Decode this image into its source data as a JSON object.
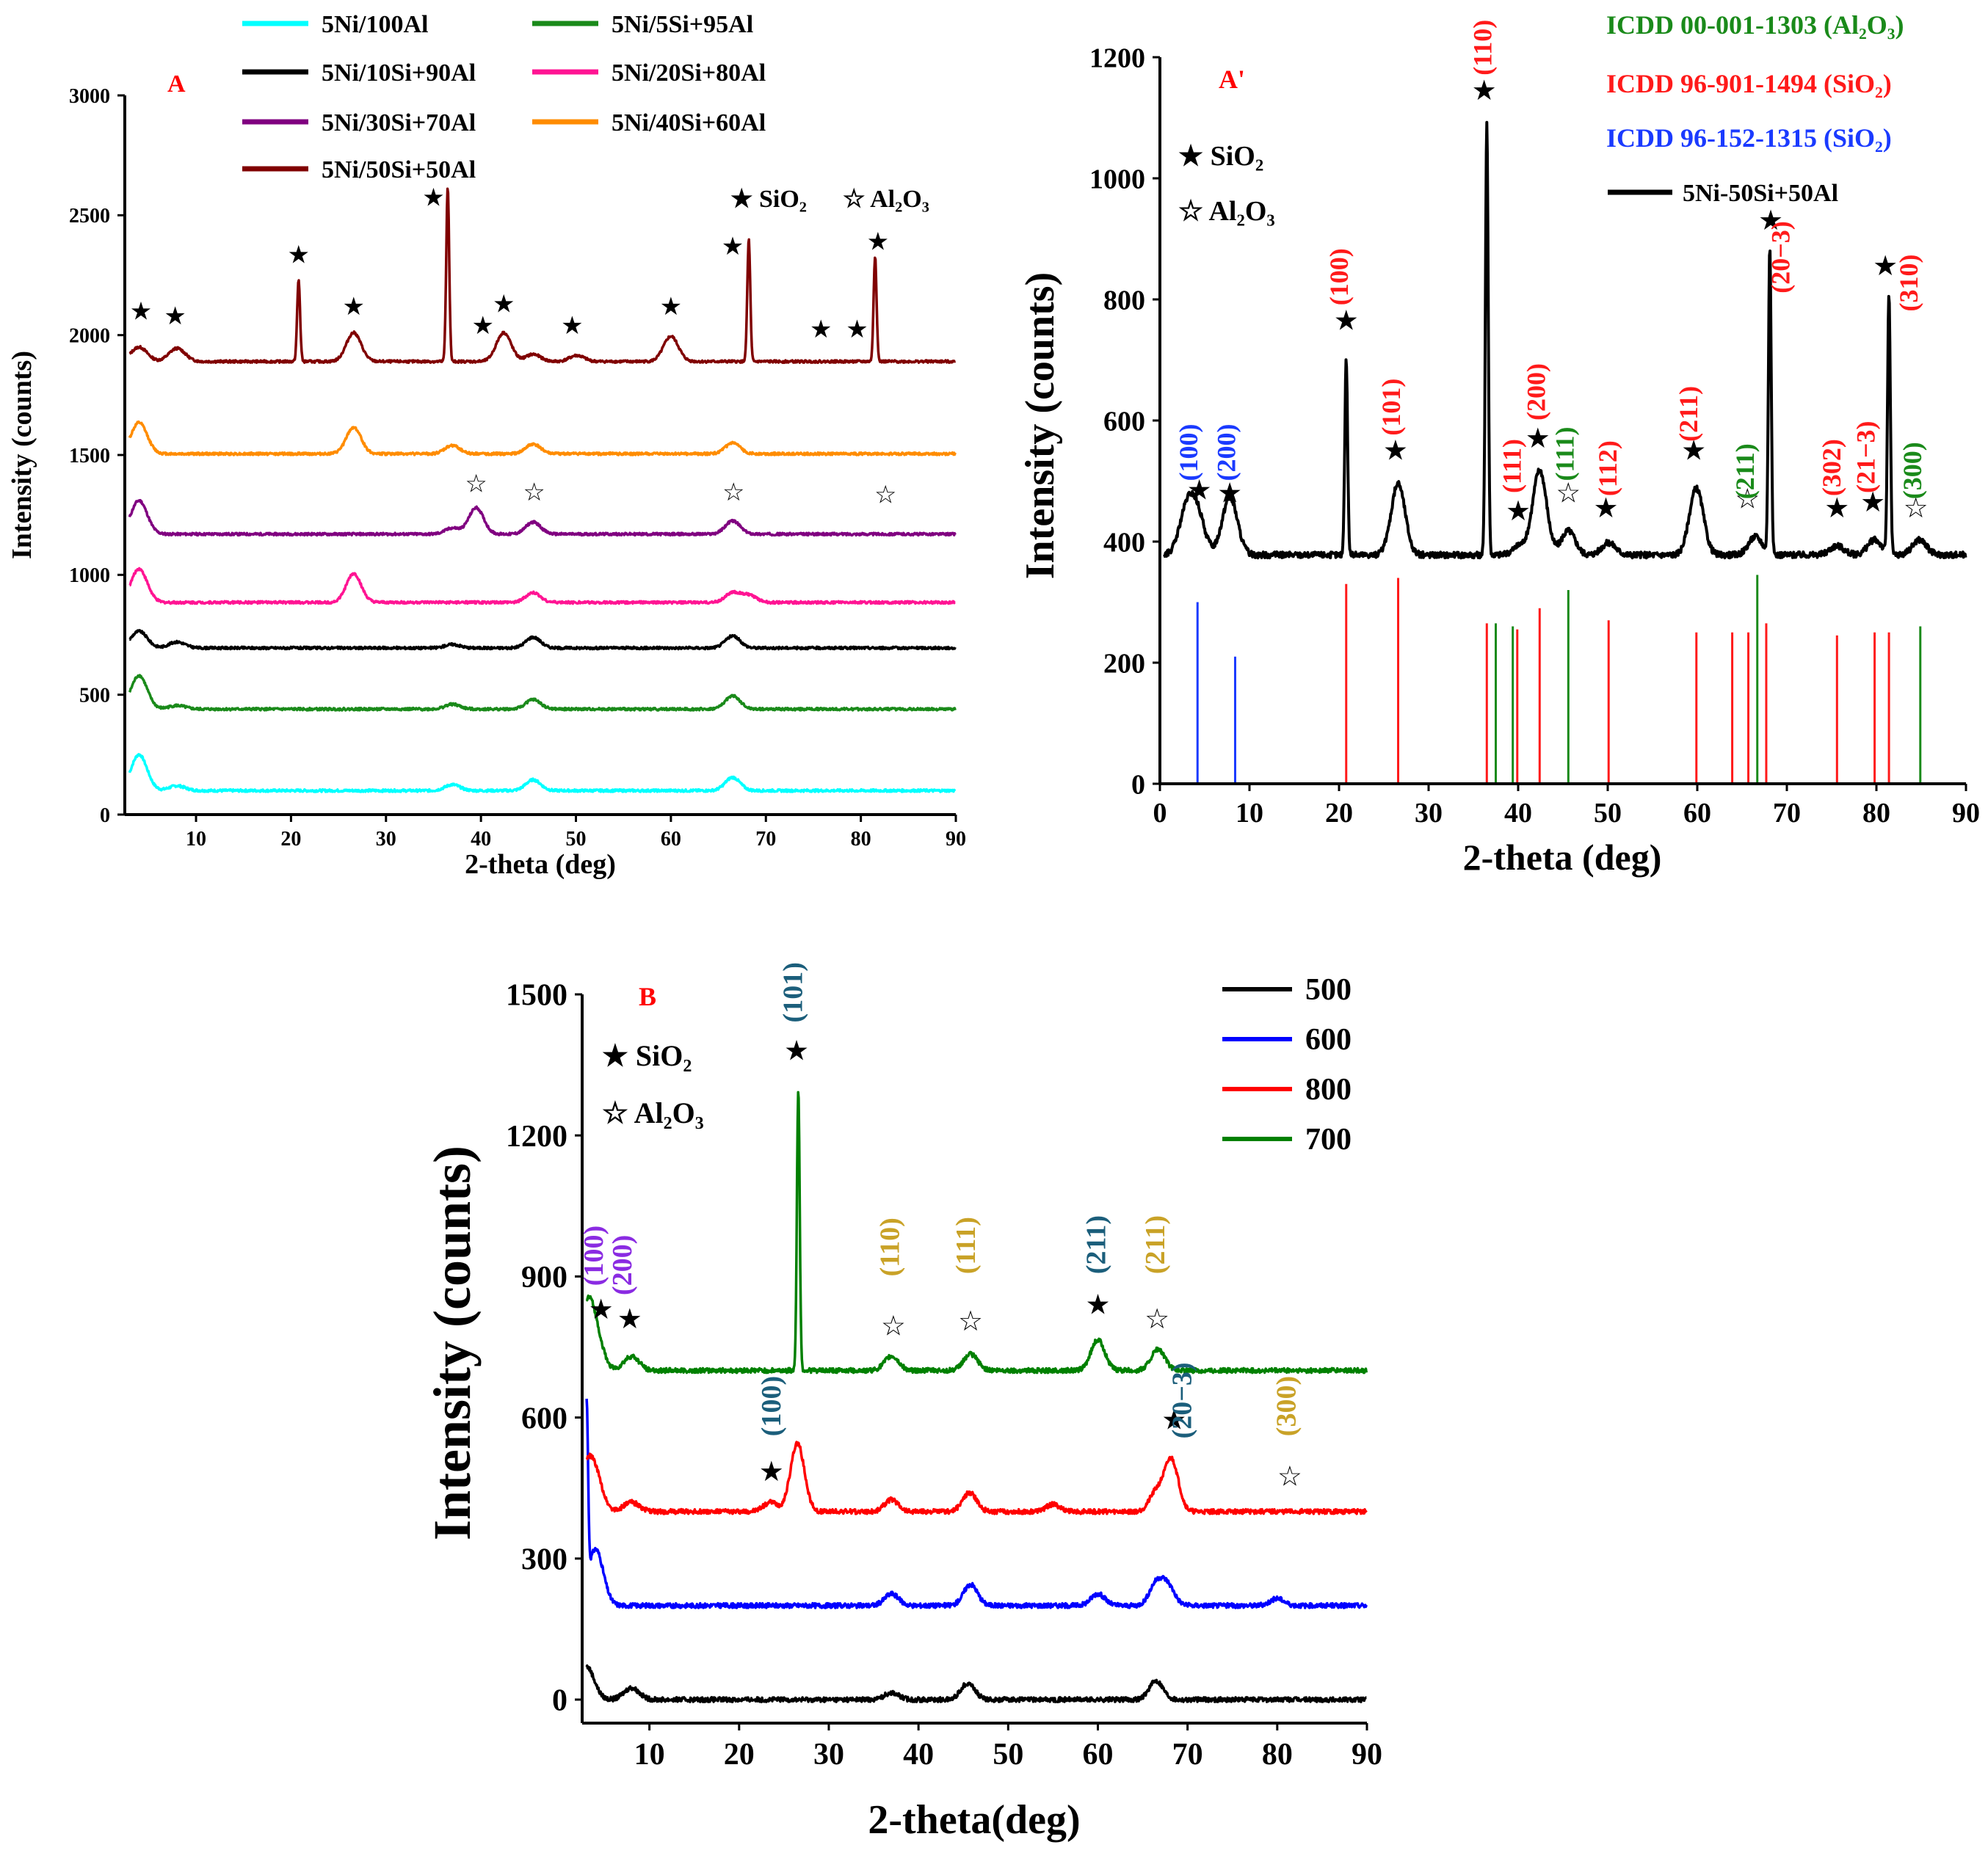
{
  "panels": [
    {
      "id": "A",
      "label": "A",
      "type": "line",
      "title": "",
      "xlabel": "2-theta (deg)",
      "ylabel": "Intensity (counts)",
      "xlim": [
        2.5,
        90
      ],
      "ylim": [
        0,
        3000
      ],
      "xticks": [
        10,
        20,
        30,
        40,
        50,
        60,
        70,
        80,
        90
      ],
      "yticks": [
        0,
        500,
        1000,
        1500,
        2000,
        2500,
        3000
      ],
      "legend_position": "top",
      "marker_legend": [
        "★ SiO₂",
        "☆ Al₂O₃"
      ],
      "series": [
        {
          "name": "5Ni/100Al",
          "color": "#00ffff",
          "baseline": 100,
          "peaks": [
            [
              4,
              150
            ],
            [
              8,
              20
            ],
            [
              37,
              25
            ],
            [
              45.5,
              45
            ],
            [
              66.5,
              55
            ]
          ]
        },
        {
          "name": "5Ni/5Si+95Al",
          "color": "#1a8a1a",
          "baseline": 440,
          "peaks": [
            [
              4,
              140
            ],
            [
              8,
              15
            ],
            [
              37,
              20
            ],
            [
              45.5,
              40
            ],
            [
              66.5,
              55
            ]
          ]
        },
        {
          "name": "5Ni/10Si+90Al",
          "color": "#000000",
          "baseline": 695,
          "peaks": [
            [
              4,
              70
            ],
            [
              8,
              25
            ],
            [
              37,
              15
            ],
            [
              45.5,
              45
            ],
            [
              66.5,
              50
            ]
          ]
        },
        {
          "name": "5Ni/20Si+80Al",
          "color": "#ff1493",
          "baseline": 885,
          "peaks": [
            [
              4,
              140
            ],
            [
              26.6,
              120
            ],
            [
              45.5,
              40
            ],
            [
              66.5,
              40
            ],
            [
              68.2,
              30
            ]
          ]
        },
        {
          "name": "5Ni/30Si+70Al",
          "color": "#800080",
          "baseline": 1170,
          "peaks": [
            [
              4,
              140
            ],
            [
              37,
              25
            ],
            [
              39.5,
              110
            ],
            [
              45.5,
              50
            ],
            [
              66.5,
              55
            ]
          ]
        },
        {
          "name": "5Ni/40Si+60Al",
          "color": "#ff8c00",
          "baseline": 1505,
          "peaks": [
            [
              4,
              130
            ],
            [
              26.6,
              110
            ],
            [
              37,
              35
            ],
            [
              45.5,
              40
            ],
            [
              66.5,
              45
            ]
          ]
        },
        {
          "name": "5Ni/50Si+50Al",
          "color": "#800000",
          "baseline": 1890,
          "peaks": [
            [
              4,
              60
            ],
            [
              8,
              55
            ],
            [
              20.8,
              340
            ],
            [
              26.6,
              120
            ],
            [
              36.5,
              730
            ],
            [
              42.4,
              120
            ],
            [
              45.5,
              30
            ],
            [
              50.1,
              25
            ],
            [
              60,
              105
            ],
            [
              68.2,
              510
            ],
            [
              81.5,
              440
            ]
          ]
        }
      ],
      "star_markers": [
        {
          "symbol": "★",
          "x": 4.2,
          "y": 2065
        },
        {
          "symbol": "★",
          "x": 7.8,
          "y": 2045
        },
        {
          "symbol": "★",
          "x": 20.8,
          "y": 2300
        },
        {
          "symbol": "★",
          "x": 26.6,
          "y": 2085
        },
        {
          "symbol": "★",
          "x": 35.0,
          "y": 2540
        },
        {
          "symbol": "★",
          "x": 40.2,
          "y": 2005
        },
        {
          "symbol": "★",
          "x": 42.4,
          "y": 2095
        },
        {
          "symbol": "★",
          "x": 49.6,
          "y": 2005
        },
        {
          "symbol": "★",
          "x": 60.0,
          "y": 2085
        },
        {
          "symbol": "★",
          "x": 66.5,
          "y": 2335
        },
        {
          "symbol": "★",
          "x": 75.8,
          "y": 1990
        },
        {
          "symbol": "★",
          "x": 79.6,
          "y": 1990
        },
        {
          "symbol": "★",
          "x": 81.8,
          "y": 2355
        },
        {
          "symbol": "☆",
          "x": 39.5,
          "y": 1345
        },
        {
          "symbol": "☆",
          "x": 45.6,
          "y": 1310
        },
        {
          "symbol": "☆",
          "x": 66.6,
          "y": 1310
        },
        {
          "symbol": "☆",
          "x": 82.6,
          "y": 1300
        }
      ]
    },
    {
      "id": "A2",
      "label": "A'",
      "type": "line",
      "title": "",
      "xlabel": "2-theta (deg)",
      "ylabel": "Intensity (counts)",
      "xlim": [
        0,
        90
      ],
      "ylim": [
        0,
        1200
      ],
      "xticks": [
        0,
        10,
        20,
        30,
        40,
        50,
        60,
        70,
        80,
        90
      ],
      "yticks": [
        0,
        200,
        400,
        600,
        800,
        1000,
        1200
      ],
      "legend": [
        "ICDD 00-001-1303 (Al₂O₃)",
        "ICDD 96-901-1494 (SiO₂)",
        "ICDD 96-152-1315 (SiO₂)",
        "5Ni-50Si+50Al"
      ],
      "legend_colors": [
        "#1a8a1a",
        "#ff1a1a",
        "#1a3aff",
        "#000000"
      ],
      "marker_legend": [
        "★ SiO₂",
        "☆ Al₂O₃"
      ],
      "series": [
        {
          "name": "5Ni-50Si+50Al",
          "color": "#000000",
          "baseline": 378,
          "peaks": [
            [
              3,
              70
            ],
            [
              4.2,
              60
            ],
            [
              7.8,
              95
            ],
            [
              20.8,
              325
            ],
            [
              26.6,
              118
            ],
            [
              36.5,
              715
            ],
            [
              40.2,
              15
            ],
            [
              42.4,
              140
            ],
            [
              45.6,
              40
            ],
            [
              50.1,
              20
            ],
            [
              59.9,
              110
            ],
            [
              66.5,
              30
            ],
            [
              68.1,
              505
            ],
            [
              75.6,
              15
            ],
            [
              79.8,
              25
            ],
            [
              81.4,
              430
            ],
            [
              84.8,
              25
            ]
          ]
        }
      ],
      "reference_lines": {
        "blue": [
          [
            4.2,
            300
          ],
          [
            8.4,
            210
          ]
        ],
        "red": [
          [
            20.8,
            330
          ],
          [
            26.6,
            340
          ],
          [
            36.5,
            265
          ],
          [
            39.9,
            255
          ],
          [
            42.4,
            290
          ],
          [
            50.1,
            270
          ],
          [
            59.9,
            250
          ],
          [
            63.9,
            250
          ],
          [
            65.7,
            250
          ],
          [
            67.7,
            265
          ],
          [
            75.6,
            245
          ],
          [
            79.8,
            250
          ],
          [
            81.4,
            250
          ]
        ],
        "green": [
          [
            37.5,
            265
          ],
          [
            39.4,
            260
          ],
          [
            45.6,
            320
          ],
          [
            66.7,
            345
          ],
          [
            84.9,
            260
          ]
        ]
      },
      "miller_labels": [
        {
          "text": "(100)",
          "color": "#1a3aff",
          "x": 4.2,
          "y": 500
        },
        {
          "text": "(200)",
          "color": "#1a3aff",
          "x": 8.4,
          "y": 500
        },
        {
          "text": "(100)",
          "color": "#ff1a1a",
          "x": 21.0,
          "y": 790
        },
        {
          "text": "(101)",
          "color": "#ff1a1a",
          "x": 26.8,
          "y": 575
        },
        {
          "text": "(110)",
          "color": "#ff1a1a",
          "x": 37.0,
          "y": 1170
        },
        {
          "text": "(111)",
          "color": "#ff1a1a",
          "x": 40.3,
          "y": 480
        },
        {
          "text": "(200)",
          "color": "#ff1a1a",
          "x": 43.0,
          "y": 600
        },
        {
          "text": "(111)",
          "color": "#1a8a1a",
          "x": 46.2,
          "y": 500
        },
        {
          "text": "(112)",
          "color": "#ff1a1a",
          "x": 51.0,
          "y": 475
        },
        {
          "text": "(211)",
          "color": "#ff1a1a",
          "x": 60.0,
          "y": 565
        },
        {
          "text": "(211)",
          "color": "#1a8a1a",
          "x": 66.3,
          "y": 470
        },
        {
          "text": "(20−3)",
          "color": "#ff1a1a",
          "x": 70.3,
          "y": 810
        },
        {
          "text": "(302)",
          "color": "#ff1a1a",
          "x": 76.0,
          "y": 475
        },
        {
          "text": "(21−3)",
          "color": "#ff1a1a",
          "x": 79.8,
          "y": 480
        },
        {
          "text": "(310)",
          "color": "#ff1a1a",
          "x": 84.6,
          "y": 780
        },
        {
          "text": "(300)",
          "color": "#1a8a1a",
          "x": 85.0,
          "y": 470
        }
      ],
      "star_markers": [
        {
          "symbol": "★",
          "x": 4.4,
          "y": 470
        },
        {
          "symbol": "★",
          "x": 7.8,
          "y": 465
        },
        {
          "symbol": "★",
          "x": 20.8,
          "y": 750
        },
        {
          "symbol": "★",
          "x": 26.3,
          "y": 535
        },
        {
          "symbol": "★",
          "x": 36.2,
          "y": 1130
        },
        {
          "symbol": "★",
          "x": 40.0,
          "y": 435
        },
        {
          "symbol": "★",
          "x": 42.2,
          "y": 555
        },
        {
          "symbol": "☆",
          "x": 45.6,
          "y": 465
        },
        {
          "symbol": "★",
          "x": 49.8,
          "y": 440
        },
        {
          "symbol": "★",
          "x": 59.6,
          "y": 535
        },
        {
          "symbol": "☆",
          "x": 65.6,
          "y": 455
        },
        {
          "symbol": "★",
          "x": 68.2,
          "y": 915
        },
        {
          "symbol": "★",
          "x": 75.6,
          "y": 440
        },
        {
          "symbol": "★",
          "x": 79.6,
          "y": 450
        },
        {
          "symbol": "★",
          "x": 81.0,
          "y": 840
        },
        {
          "symbol": "☆",
          "x": 84.4,
          "y": 440
        }
      ]
    },
    {
      "id": "B",
      "label": "B",
      "type": "line",
      "title": "",
      "xlabel": "2-theta(deg)",
      "ylabel": "Intensity (counts)",
      "xlim": [
        2.5,
        90
      ],
      "ylim": [
        -50,
        1500
      ],
      "xticks": [
        10,
        20,
        30,
        40,
        50,
        60,
        70,
        80,
        90
      ],
      "yticks": [
        0,
        300,
        600,
        900,
        1200,
        1500
      ],
      "legend": [
        "500",
        "600",
        "800",
        "700"
      ],
      "legend_colors": [
        "#000000",
        "#0000ff",
        "#ff0000",
        "#008000"
      ],
      "marker_legend": [
        "★ SiO₂",
        "☆ Al₂O₃"
      ],
      "series": [
        {
          "name": "500",
          "color": "#000000",
          "baseline": 0,
          "peaks": [
            [
              3,
              70
            ],
            [
              8,
              25
            ],
            [
              37,
              15
            ],
            [
              45.5,
              35
            ],
            [
              66.5,
              40
            ]
          ]
        },
        {
          "name": "600",
          "color": "#0000ff",
          "baseline": 200,
          "peaks": [
            [
              3,
              380
            ],
            [
              4,
              120
            ],
            [
              37,
              25
            ],
            [
              45.8,
              45
            ],
            [
              60,
              25
            ],
            [
              66.5,
              45
            ],
            [
              67.8,
              40
            ],
            [
              80,
              15
            ]
          ]
        },
        {
          "name": "800",
          "color": "#ff0000",
          "baseline": 400,
          "peaks": [
            [
              3,
              80
            ],
            [
              4,
              60
            ],
            [
              8,
              20
            ],
            [
              23.5,
              20
            ],
            [
              26.5,
              145
            ],
            [
              37,
              25
            ],
            [
              45.7,
              40
            ],
            [
              55,
              15
            ],
            [
              66.5,
              40
            ],
            [
              68.2,
              110
            ]
          ]
        },
        {
          "name": "700",
          "color": "#008000",
          "baseline": 700,
          "peaks": [
            [
              3,
              120
            ],
            [
              4,
              60
            ],
            [
              8,
              30
            ],
            [
              26.6,
              600
            ],
            [
              37,
              30
            ],
            [
              45.8,
              35
            ],
            [
              60,
              65
            ],
            [
              66.7,
              45
            ]
          ]
        }
      ],
      "miller_labels": [
        {
          "text": "(100)",
          "color": "#8a2be2",
          "x": 4.8,
          "y": 880
        },
        {
          "text": "(200)",
          "color": "#8a2be2",
          "x": 8.0,
          "y": 860
        },
        {
          "text": "(101)",
          "color": "#1b5e7b",
          "x": 27.0,
          "y": 1440
        },
        {
          "text": "(110)",
          "color": "#c9a227",
          "x": 37.8,
          "y": 900
        },
        {
          "text": "(111)",
          "color": "#c9a227",
          "x": 46.3,
          "y": 905
        },
        {
          "text": "(211)",
          "color": "#1b5e7b",
          "x": 60.8,
          "y": 905
        },
        {
          "text": "(211)",
          "color": "#c9a227",
          "x": 67.4,
          "y": 905
        },
        {
          "text": "(100)",
          "color": "#1b5e7b",
          "x": 24.6,
          "y": 560
        },
        {
          "text": "(20−3)",
          "color": "#1b5e7b",
          "x": 70.4,
          "y": 555
        },
        {
          "text": "(300)",
          "color": "#c9a227",
          "x": 82.0,
          "y": 560
        }
      ],
      "star_markers": [
        {
          "symbol": "★",
          "x": 4.6,
          "y": 810
        },
        {
          "symbol": "★",
          "x": 7.8,
          "y": 790
        },
        {
          "symbol": "★",
          "x": 26.4,
          "y": 1360
        },
        {
          "symbol": "☆",
          "x": 37.2,
          "y": 775
        },
        {
          "symbol": "☆",
          "x": 45.8,
          "y": 785
        },
        {
          "symbol": "★",
          "x": 60.0,
          "y": 820
        },
        {
          "symbol": "☆",
          "x": 66.6,
          "y": 790
        },
        {
          "symbol": "★",
          "x": 23.6,
          "y": 465
        },
        {
          "symbol": "★",
          "x": 68.5,
          "y": 575
        },
        {
          "symbol": "☆",
          "x": 81.4,
          "y": 455
        }
      ]
    }
  ]
}
